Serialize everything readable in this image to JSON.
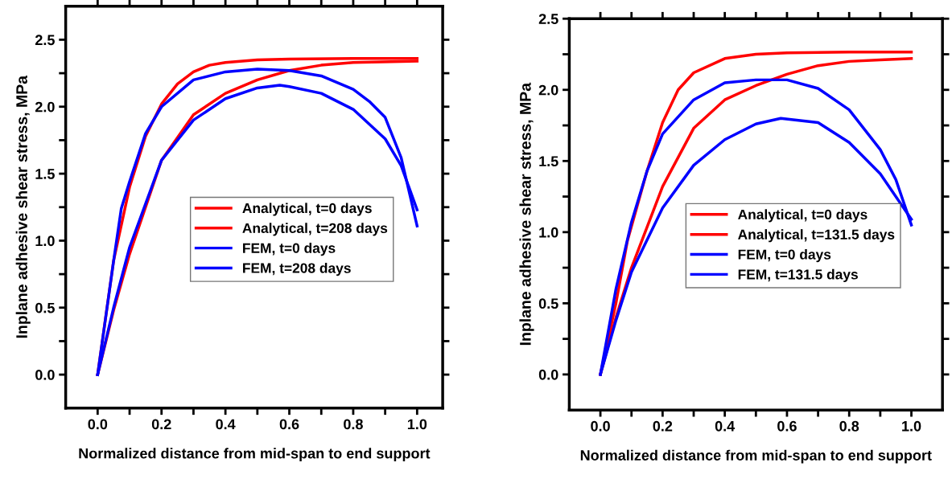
{
  "chart_data": [
    {
      "type": "line",
      "xlabel": "Normalized distance from mid-span to end support",
      "ylabel": "Inplane adhesive shear stress, MPa",
      "xlim": [
        -0.1,
        1.08
      ],
      "ylim": [
        -0.25,
        2.75
      ],
      "xticks": [
        {
          "value": 0.0,
          "label": "0.0"
        },
        {
          "value": 0.1,
          "label": null
        },
        {
          "value": 0.2,
          "label": "0.2"
        },
        {
          "value": 0.3,
          "label": null
        },
        {
          "value": 0.4,
          "label": "0.4"
        },
        {
          "value": 0.5,
          "label": null
        },
        {
          "value": 0.6,
          "label": "0.6"
        },
        {
          "value": 0.7,
          "label": null
        },
        {
          "value": 0.8,
          "label": "0.8"
        },
        {
          "value": 0.9,
          "label": null
        },
        {
          "value": 1.0,
          "label": "1.0"
        }
      ],
      "yticks": [
        {
          "value": 0.0,
          "label": "0.0"
        },
        {
          "value": 0.25,
          "label": null
        },
        {
          "value": 0.5,
          "label": "0.5"
        },
        {
          "value": 0.75,
          "label": null
        },
        {
          "value": 1.0,
          "label": "1.0"
        },
        {
          "value": 1.25,
          "label": null
        },
        {
          "value": 1.5,
          "label": "1.5"
        },
        {
          "value": 1.75,
          "label": null
        },
        {
          "value": 2.0,
          "label": "2.0"
        },
        {
          "value": 2.25,
          "label": null
        },
        {
          "value": 2.5,
          "label": "2.5"
        }
      ],
      "legend": "center",
      "grid": false,
      "series": [
        {
          "name": "Analytical, t=0 days",
          "color": "#ff0000",
          "x": [
            0,
            0.05,
            0.1,
            0.15,
            0.2,
            0.25,
            0.3,
            0.35,
            0.4,
            0.5,
            0.6,
            0.8,
            1.0
          ],
          "values": [
            0,
            0.85,
            1.4,
            1.78,
            2.02,
            2.17,
            2.26,
            2.31,
            2.33,
            2.35,
            2.355,
            2.36,
            2.36
          ]
        },
        {
          "name": "Analytical, t=208 days",
          "color": "#ff0000",
          "x": [
            0,
            0.05,
            0.1,
            0.2,
            0.3,
            0.4,
            0.5,
            0.6,
            0.7,
            0.8,
            1.0
          ],
          "values": [
            0,
            0.48,
            0.9,
            1.6,
            1.94,
            2.1,
            2.2,
            2.27,
            2.31,
            2.33,
            2.34
          ]
        },
        {
          "name": "FEM, t=0 days",
          "color": "#0000ff",
          "x": [
            0,
            0.05,
            0.074,
            0.1,
            0.15,
            0.2,
            0.3,
            0.4,
            0.5,
            0.6,
            0.7,
            0.8,
            0.85,
            0.9,
            0.95,
            1.0
          ],
          "values": [
            0,
            0.85,
            1.24,
            1.44,
            1.8,
            2.0,
            2.2,
            2.26,
            2.28,
            2.27,
            2.23,
            2.13,
            2.04,
            1.92,
            1.62,
            1.11
          ]
        },
        {
          "name": "FEM, t=208 days",
          "color": "#0000ff",
          "x": [
            0,
            0.05,
            0.1,
            0.2,
            0.3,
            0.4,
            0.5,
            0.57,
            0.6,
            0.7,
            0.8,
            0.9,
            0.95,
            1.0
          ],
          "values": [
            0,
            0.5,
            0.95,
            1.6,
            1.9,
            2.06,
            2.14,
            2.16,
            2.15,
            2.1,
            1.98,
            1.76,
            1.56,
            1.23
          ]
        }
      ]
    },
    {
      "type": "line",
      "xlabel": "Normalized distance from mid-span to end support",
      "ylabel": "Inplane adhesive shear stress, MPa",
      "xlim": [
        -0.1,
        1.1
      ],
      "ylim": [
        -0.25,
        2.5
      ],
      "xticks": [
        {
          "value": 0.0,
          "label": "0.0"
        },
        {
          "value": 0.1,
          "label": null
        },
        {
          "value": 0.2,
          "label": "0.2"
        },
        {
          "value": 0.3,
          "label": null
        },
        {
          "value": 0.4,
          "label": "0.4"
        },
        {
          "value": 0.5,
          "label": null
        },
        {
          "value": 0.6,
          "label": "0.6"
        },
        {
          "value": 0.7,
          "label": null
        },
        {
          "value": 0.8,
          "label": "0.8"
        },
        {
          "value": 0.9,
          "label": null
        },
        {
          "value": 1.0,
          "label": "1.0"
        }
      ],
      "yticks": [
        {
          "value": 0.0,
          "label": "0.0"
        },
        {
          "value": 0.25,
          "label": null
        },
        {
          "value": 0.5,
          "label": "0.5"
        },
        {
          "value": 0.75,
          "label": null
        },
        {
          "value": 1.0,
          "label": "1.0"
        },
        {
          "value": 1.25,
          "label": null
        },
        {
          "value": 1.5,
          "label": "1.5"
        },
        {
          "value": 1.75,
          "label": null
        },
        {
          "value": 2.0,
          "label": "2.0"
        },
        {
          "value": 2.25,
          "label": null
        },
        {
          "value": 2.5,
          "label": "2.5"
        }
      ],
      "legend": "center",
      "grid": false,
      "series": [
        {
          "name": "Analytical, t=0 days",
          "color": "#ff0000",
          "x": [
            0,
            0.05,
            0.087,
            0.15,
            0.2,
            0.25,
            0.3,
            0.4,
            0.5,
            0.6,
            0.8,
            1.0
          ],
          "values": [
            0,
            0.5,
            0.94,
            1.43,
            1.77,
            2.0,
            2.12,
            2.22,
            2.25,
            2.26,
            2.265,
            2.265
          ]
        },
        {
          "name": "Analytical, t=131.5 days",
          "color": "#ff0000",
          "x": [
            0,
            0.05,
            0.1,
            0.2,
            0.3,
            0.4,
            0.5,
            0.6,
            0.7,
            0.8,
            0.9,
            1.0
          ],
          "values": [
            0,
            0.4,
            0.75,
            1.32,
            1.73,
            1.93,
            2.03,
            2.11,
            2.17,
            2.2,
            2.21,
            2.22
          ]
        },
        {
          "name": "FEM, t=0 days",
          "color": "#0000ff",
          "x": [
            0,
            0.05,
            0.1,
            0.15,
            0.2,
            0.3,
            0.4,
            0.5,
            0.6,
            0.7,
            0.8,
            0.9,
            0.95,
            1.0
          ],
          "values": [
            0,
            0.6,
            1.07,
            1.43,
            1.69,
            1.93,
            2.05,
            2.07,
            2.07,
            2.01,
            1.86,
            1.58,
            1.37,
            1.05
          ]
        },
        {
          "name": "FEM, t=131.5 days",
          "color": "#0000ff",
          "x": [
            0,
            0.05,
            0.1,
            0.2,
            0.3,
            0.4,
            0.5,
            0.58,
            0.7,
            0.8,
            0.9,
            1.0
          ],
          "values": [
            0,
            0.38,
            0.72,
            1.17,
            1.47,
            1.65,
            1.76,
            1.8,
            1.77,
            1.63,
            1.41,
            1.09
          ]
        }
      ]
    }
  ]
}
